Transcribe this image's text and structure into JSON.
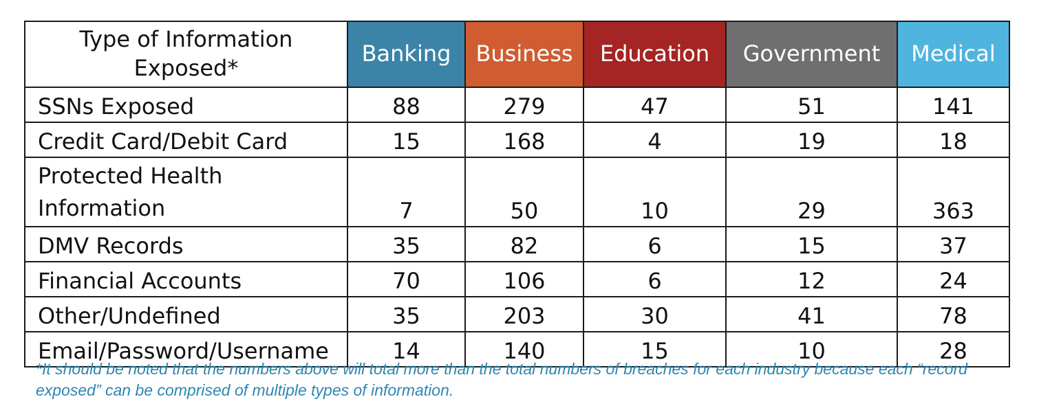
{
  "table": {
    "type_header": "Type of Information Exposed*",
    "columns": [
      {
        "label": "Banking",
        "color": "#3b84a8"
      },
      {
        "label": "Business",
        "color": "#d05d32"
      },
      {
        "label": "Education",
        "color": "#a52424"
      },
      {
        "label": "Government",
        "color": "#6f6f6f"
      },
      {
        "label": "Medical",
        "color": "#4fb4e0"
      }
    ],
    "rows": [
      {
        "label": "SSNs Exposed",
        "values": [
          "88",
          "279",
          "47",
          "51",
          "141"
        ]
      },
      {
        "label": "Credit Card/Debit Card",
        "values": [
          "15",
          "168",
          "4",
          "19",
          "18"
        ]
      },
      {
        "label": "Protected Health Information",
        "values": [
          "7",
          "50",
          "10",
          "29",
          "363"
        ]
      },
      {
        "label": "DMV Records",
        "values": [
          "35",
          "82",
          "6",
          "15",
          "37"
        ]
      },
      {
        "label": "Financial Accounts",
        "values": [
          "70",
          "106",
          "6",
          "12",
          "24"
        ]
      },
      {
        "label": "Other/Undefined",
        "values": [
          "35",
          "203",
          "30",
          "41",
          "78"
        ]
      },
      {
        "label": "Email/Password/Username",
        "values": [
          "14",
          "140",
          "15",
          "10",
          "28"
        ]
      }
    ]
  },
  "footnote": "*It should be noted that the numbers above will total more than the total numbers of breaches for each industry because each “record exposed” can be comprised of multiple types of information.",
  "chart_data": {
    "type": "table",
    "categories": [
      "SSNs Exposed",
      "Credit Card/Debit Card",
      "Protected Health Information",
      "DMV Records",
      "Financial Accounts",
      "Other/Undefined",
      "Email/Password/Username"
    ],
    "series": [
      {
        "name": "Banking",
        "values": [
          88,
          15,
          7,
          35,
          70,
          35,
          14
        ]
      },
      {
        "name": "Business",
        "values": [
          279,
          168,
          50,
          82,
          106,
          203,
          140
        ]
      },
      {
        "name": "Education",
        "values": [
          47,
          4,
          10,
          6,
          6,
          30,
          15
        ]
      },
      {
        "name": "Government",
        "values": [
          51,
          19,
          29,
          15,
          12,
          41,
          10
        ]
      },
      {
        "name": "Medical",
        "values": [
          141,
          18,
          363,
          37,
          24,
          78,
          28
        ]
      }
    ]
  }
}
